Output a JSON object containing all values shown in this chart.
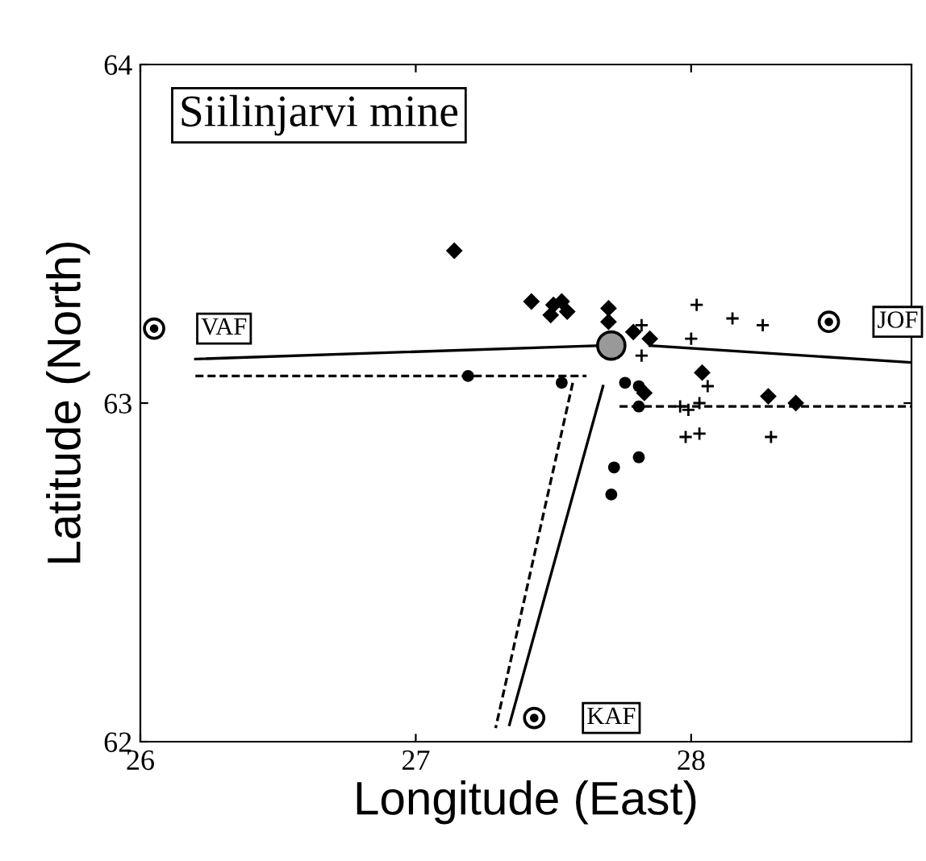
{
  "chart_data": {
    "type": "scatter",
    "xlabel": "Longitude (East)",
    "ylabel": "Latitude (North)",
    "xlim": [
      26,
      28.8
    ],
    "ylim": [
      62,
      64
    ],
    "xticks": [
      26,
      27,
      28
    ],
    "yticks": [
      62,
      63,
      64
    ],
    "grid": false,
    "legend": false,
    "series": [
      {
        "marker": "diamond",
        "color": "#000000",
        "x": [
          27.14,
          27.42,
          27.49,
          27.5,
          27.53,
          27.55,
          27.7,
          27.7,
          27.79,
          27.85,
          28.04,
          28.28,
          28.38,
          27.83
        ],
        "values": [
          63.45,
          63.3,
          63.26,
          63.29,
          63.3,
          63.27,
          63.28,
          63.24,
          63.21,
          63.19,
          63.09,
          63.02,
          63.0,
          63.03
        ]
      },
      {
        "marker": "circle",
        "color": "#000000",
        "x": [
          27.19,
          27.53,
          27.76,
          27.81,
          27.81,
          27.72,
          27.81,
          27.71
        ],
        "values": [
          63.08,
          63.06,
          63.06,
          63.05,
          62.99,
          62.81,
          62.84,
          62.73
        ]
      },
      {
        "marker": "cross",
        "color": "#000000",
        "x": [
          28.02,
          28.15,
          28.26,
          27.82,
          28.0,
          27.82,
          28.06,
          28.03,
          27.96,
          27.99,
          27.98,
          28.03,
          28.29
        ],
        "values": [
          63.29,
          63.25,
          63.23,
          63.23,
          63.19,
          63.14,
          63.05,
          63.0,
          62.99,
          62.98,
          62.9,
          62.91,
          62.9
        ]
      },
      {
        "type": "bubble",
        "colors": [
          "#ffffff",
          "#ffffff",
          "#ffffff",
          "#999999"
        ],
        "x": [
          26.05,
          28.5,
          27.43,
          27.71
        ],
        "values": [
          63.22,
          63.24,
          62.07,
          63.17
        ],
        "sizes": [
          0.5,
          0.5,
          0.5,
          1
        ]
      },
      {
        "type": "line",
        "line_style": "solid",
        "color": "#000000",
        "x": [
          26.2,
          27.67
        ],
        "values": [
          63.13,
          63.17
        ]
      },
      {
        "type": "line",
        "line_style": "solid",
        "color": "#000000",
        "x": [
          27.85,
          28.8
        ],
        "values": [
          63.17,
          63.12
        ]
      },
      {
        "type": "line",
        "line_style": "dashed",
        "color": "#000000",
        "x": [
          26.2,
          27.62
        ],
        "values": [
          63.08,
          63.08
        ]
      },
      {
        "type": "line",
        "line_style": "dashed",
        "color": "#000000",
        "x": [
          27.74,
          28.8
        ],
        "values": [
          62.99,
          62.99
        ]
      },
      {
        "type": "line",
        "line_style": "solid",
        "color": "#000000",
        "x": [
          27.68,
          27.34
        ],
        "values": [
          63.05,
          62.05
        ]
      },
      {
        "type": "line",
        "line_style": "dashed",
        "color": "#000000",
        "x": [
          27.57,
          27.29
        ],
        "values": [
          63.06,
          62.04
        ]
      }
    ],
    "annotations": [
      "Siilinjarvi mine",
      {
        "text": "VAF",
        "x": 26.05,
        "y": 63.22
      },
      {
        "text": "JOF",
        "x": 28.5,
        "y": 63.24
      },
      {
        "text": "KAF",
        "x": 27.43,
        "y": 62.07
      }
    ]
  }
}
